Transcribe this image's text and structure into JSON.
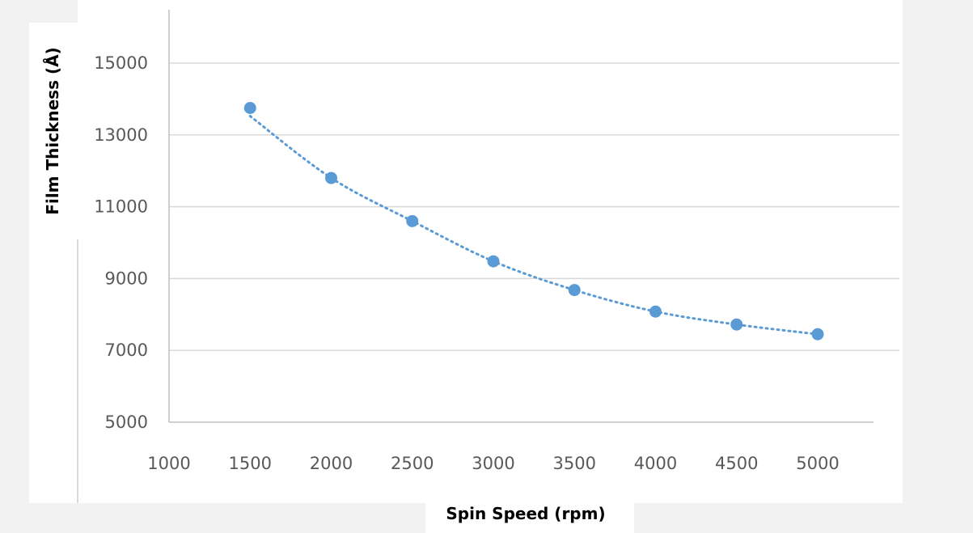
{
  "chart_data": {
    "type": "scatter",
    "title": "",
    "xlabel": "Spin Speed (rpm)",
    "ylabel": "Film Thickness (Å)",
    "xlim": [
      1000,
      5000
    ],
    "ylim": [
      5000,
      15000
    ],
    "x_ticks": [
      "1000",
      "1500",
      "2000",
      "2500",
      "3000",
      "3500",
      "4000",
      "4500",
      "5000"
    ],
    "y_ticks": [
      "5000",
      "7000",
      "9000",
      "11000",
      "13000",
      "15000"
    ],
    "grid": true,
    "legend": "none",
    "trendline": "dotted",
    "series": [
      {
        "x": [
          1500,
          2000,
          2500,
          3000,
          3500,
          4000,
          4500,
          5000
        ],
        "y": [
          13750,
          11800,
          10600,
          9480,
          8680,
          8080,
          7720,
          7450
        ],
        "color": "#5b9bd5"
      }
    ],
    "colors": {
      "marker": "#5b9bd5",
      "trendline": "#5b9bd5",
      "grid": "#d9d9d9",
      "axis": "#bfbfbf",
      "background_panel": "#f2f2f2"
    }
  }
}
